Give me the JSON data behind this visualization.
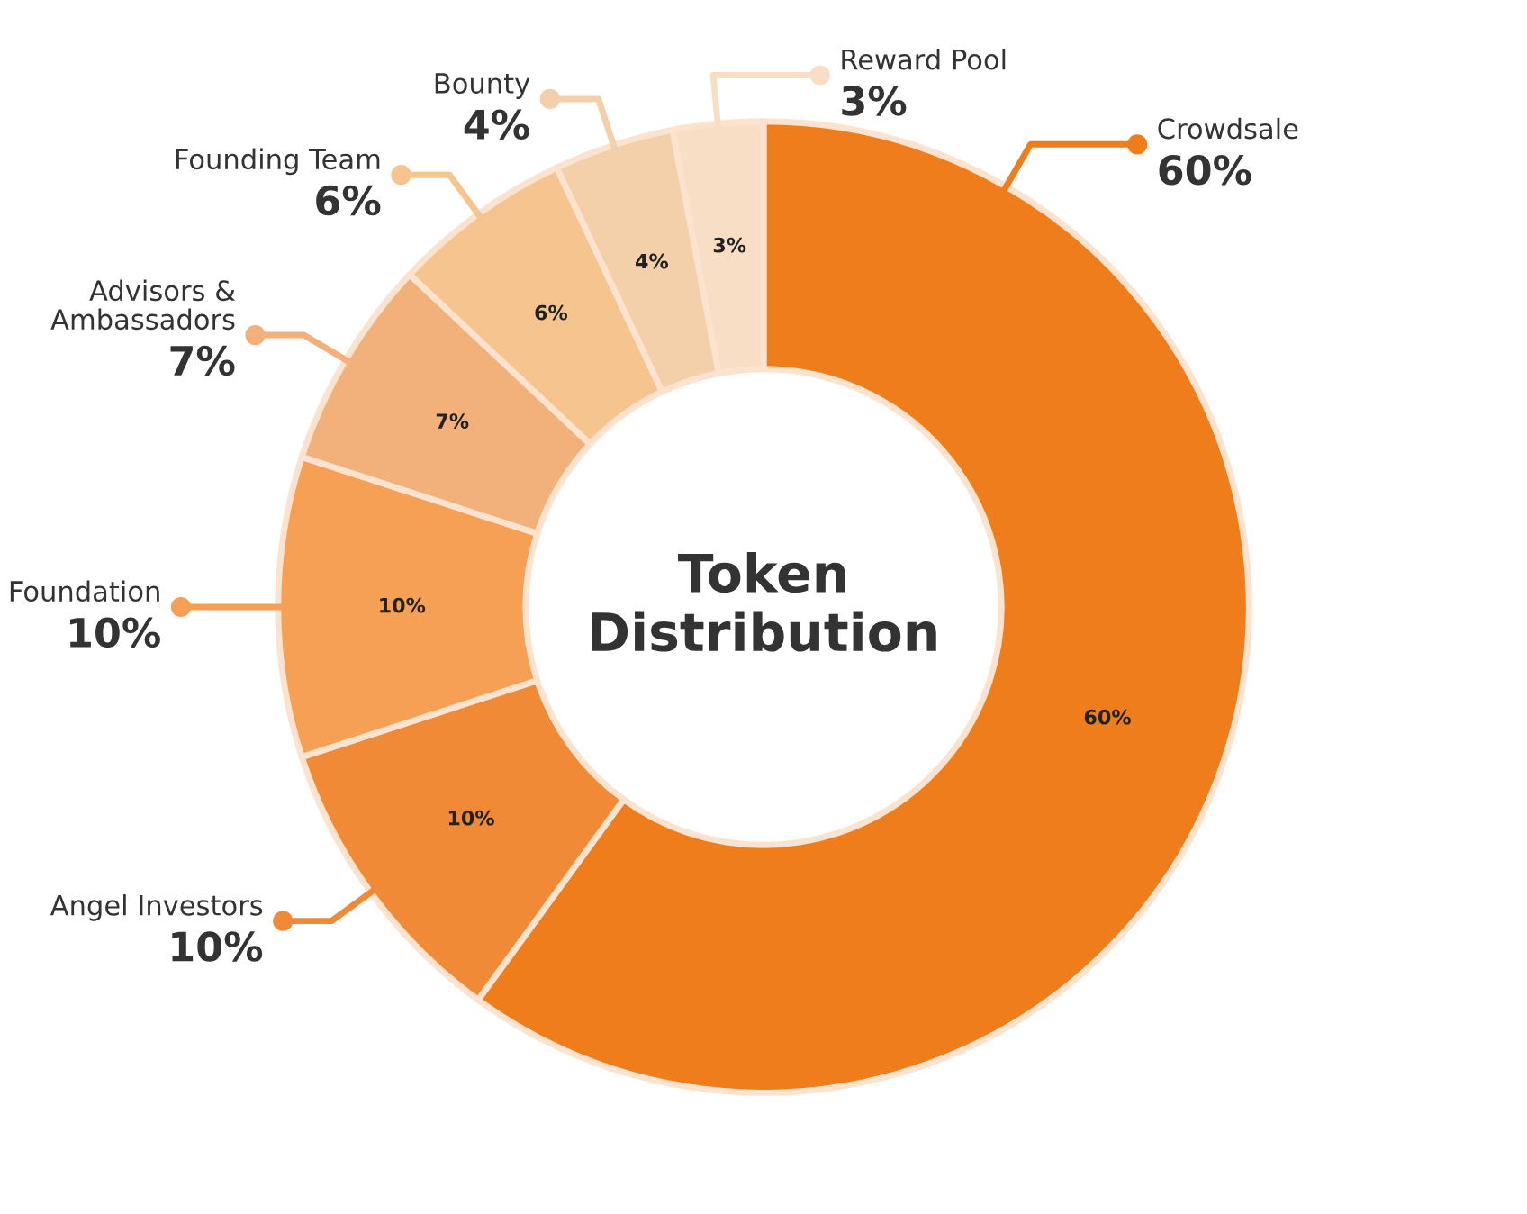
{
  "chart_data": {
    "type": "donut",
    "title": "Token Distribution",
    "categories": [
      "Crowdsale",
      "Angel Investors",
      "Foundation",
      "Advisors & Ambassadors",
      "Founding Team",
      "Bounty",
      "Reward Pool"
    ],
    "values": [
      60,
      10,
      10,
      7,
      6,
      4,
      3
    ],
    "value_labels": [
      "60%",
      "10%",
      "10%",
      "7%",
      "6%",
      "4%",
      "3%"
    ],
    "colors": [
      "#f07d1c",
      "#f08a36",
      "#f5a055",
      "#f2b07a",
      "#f6c48e",
      "#f3cfaa",
      "#f8dec4"
    ],
    "data_labels": true,
    "legend": "left"
  }
}
